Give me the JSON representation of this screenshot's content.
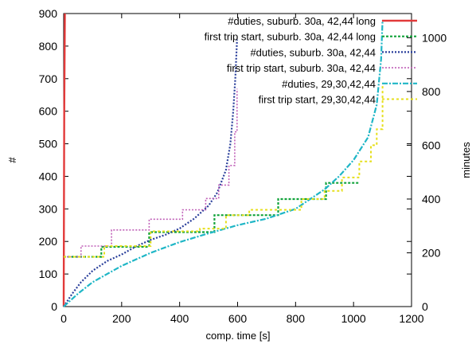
{
  "chart_data": {
    "type": "line",
    "xlabel": "comp. time [s]",
    "ylabel": "#",
    "y2label": "minutes",
    "xlim": [
      0,
      1200
    ],
    "ylim": [
      0,
      900
    ],
    "y2lim": [
      0,
      1090
    ],
    "xticks": [
      0,
      200,
      400,
      600,
      800,
      1000,
      1200
    ],
    "yticks": [
      0,
      100,
      200,
      300,
      400,
      500,
      600,
      700,
      800,
      900
    ],
    "y2ticks": [
      0,
      200,
      400,
      600,
      800,
      1000
    ],
    "legend_position": "top-right",
    "series": [
      {
        "name": "#duties, suburb. 30a, 42,44 long",
        "axis": "y",
        "color": "#e23a3a",
        "dash": "",
        "width": 2.4,
        "points": [
          [
            0,
            0
          ],
          [
            2,
            600
          ],
          [
            4,
            900
          ]
        ]
      },
      {
        "name": "first trip start, suburb. 30a, 42,44 long",
        "axis": "y2",
        "color": "#11a33a",
        "dash": "3,2",
        "width": 2.2,
        "points": [
          [
            0,
            185
          ],
          [
            130,
            185
          ],
          [
            130,
            222
          ],
          [
            295,
            222
          ],
          [
            295,
            277
          ],
          [
            520,
            277
          ],
          [
            520,
            340
          ],
          [
            740,
            340
          ],
          [
            740,
            400
          ],
          [
            905,
            400
          ],
          [
            905,
            460
          ],
          [
            1020,
            460
          ]
        ]
      },
      {
        "name": "#duties, suburb. 30a, 42,44",
        "axis": "y",
        "color": "#2a3f9b",
        "dash": "2,2",
        "width": 2.2,
        "points": [
          [
            0,
            0
          ],
          [
            30,
            40
          ],
          [
            60,
            75
          ],
          [
            100,
            110
          ],
          [
            150,
            140
          ],
          [
            200,
            160
          ],
          [
            250,
            185
          ],
          [
            300,
            205
          ],
          [
            350,
            220
          ],
          [
            400,
            240
          ],
          [
            450,
            270
          ],
          [
            500,
            310
          ],
          [
            530,
            350
          ],
          [
            560,
            420
          ],
          [
            575,
            500
          ],
          [
            585,
            600
          ],
          [
            592,
            700
          ],
          [
            598,
            820
          ]
        ]
      },
      {
        "name": "first trip start, suburb. 30a, 42,44",
        "axis": "y2",
        "color": "#c060b8",
        "dash": "2,2",
        "width": 1.6,
        "points": [
          [
            0,
            185
          ],
          [
            60,
            185
          ],
          [
            60,
            225
          ],
          [
            165,
            225
          ],
          [
            165,
            285
          ],
          [
            295,
            285
          ],
          [
            295,
            325
          ],
          [
            410,
            325
          ],
          [
            410,
            360
          ],
          [
            490,
            360
          ],
          [
            490,
            402
          ],
          [
            535,
            402
          ],
          [
            535,
            452
          ],
          [
            570,
            452
          ],
          [
            570,
            525
          ],
          [
            590,
            525
          ],
          [
            590,
            650
          ],
          [
            598,
            650
          ],
          [
            598,
            810
          ]
        ]
      },
      {
        "name": "#duties, 29,30,42,44",
        "axis": "y",
        "color": "#1fb6c6",
        "dash": "7,2,2,2",
        "width": 2.2,
        "points": [
          [
            0,
            0
          ],
          [
            50,
            40
          ],
          [
            100,
            75
          ],
          [
            150,
            100
          ],
          [
            200,
            125
          ],
          [
            300,
            165
          ],
          [
            400,
            198
          ],
          [
            500,
            225
          ],
          [
            600,
            250
          ],
          [
            700,
            270
          ],
          [
            800,
            300
          ],
          [
            850,
            330
          ],
          [
            900,
            360
          ],
          [
            950,
            400
          ],
          [
            1000,
            450
          ],
          [
            1050,
            520
          ],
          [
            1080,
            620
          ],
          [
            1095,
            760
          ],
          [
            1100,
            880
          ]
        ]
      },
      {
        "name": "first trip start, 29,30,42,44",
        "axis": "y2",
        "color": "#e6df1c",
        "dash": "3,3",
        "width": 2.0,
        "points": [
          [
            0,
            185
          ],
          [
            140,
            185
          ],
          [
            140,
            225
          ],
          [
            300,
            225
          ],
          [
            300,
            280
          ],
          [
            470,
            280
          ],
          [
            470,
            290
          ],
          [
            560,
            290
          ],
          [
            560,
            340
          ],
          [
            640,
            340
          ],
          [
            640,
            360
          ],
          [
            820,
            360
          ],
          [
            820,
            400
          ],
          [
            900,
            400
          ],
          [
            900,
            430
          ],
          [
            960,
            430
          ],
          [
            960,
            480
          ],
          [
            1020,
            480
          ],
          [
            1020,
            540
          ],
          [
            1060,
            540
          ],
          [
            1060,
            600
          ],
          [
            1080,
            600
          ],
          [
            1080,
            660
          ],
          [
            1100,
            660
          ],
          [
            1100,
            830
          ]
        ]
      }
    ]
  }
}
